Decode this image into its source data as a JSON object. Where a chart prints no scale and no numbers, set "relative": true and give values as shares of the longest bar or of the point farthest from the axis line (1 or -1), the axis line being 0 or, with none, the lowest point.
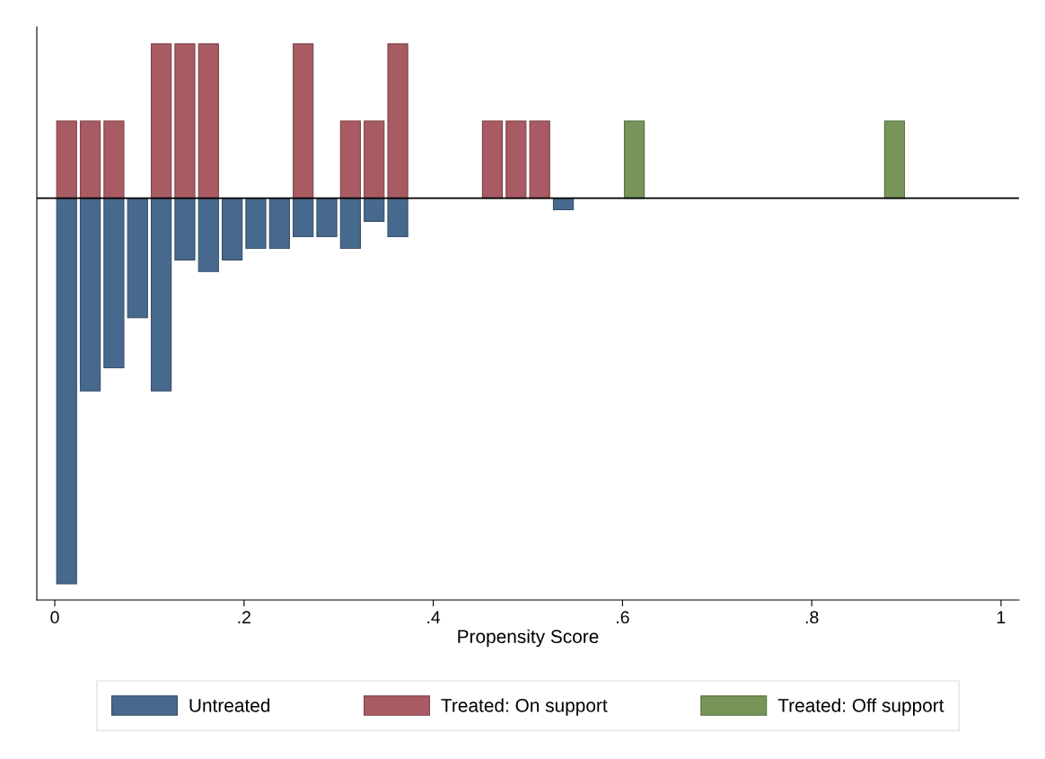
{
  "chart_data": {
    "type": "bar",
    "relative": true,
    "xlabel": "Propensity Score",
    "xlim": [
      -0.019,
      1.019
    ],
    "xticks": [
      0,
      {
        "value": 0.2,
        "label": ".2"
      },
      {
        "value": 0.4,
        "label": ".4"
      },
      {
        "value": 0.6,
        "label": ".6"
      },
      {
        "value": 0.8,
        "label": ".8"
      },
      1
    ],
    "tick_labels": "x",
    "grid": false,
    "legend": "bottom",
    "series": [
      {
        "name": "Untreated",
        "color": "#48698e",
        "x": [
          0.0125,
          0.0375,
          0.0625,
          0.0875,
          0.1125,
          0.1375,
          0.1625,
          0.1875,
          0.2125,
          0.2375,
          0.2625,
          0.2875,
          0.3125,
          0.3375,
          0.3625,
          0.5375
        ],
        "values": [
          -1,
          -0.5,
          -0.44,
          -0.31,
          -0.5,
          -0.16,
          -0.19,
          -0.16,
          -0.13,
          -0.13,
          -0.1,
          -0.1,
          -0.13,
          -0.06,
          -0.1,
          -0.03
        ]
      },
      {
        "name": "Treated: On support",
        "color": "#a85b62",
        "x": [
          0.0125,
          0.0375,
          0.0625,
          0.1125,
          0.1375,
          0.1625,
          0.2625,
          0.3125,
          0.3375,
          0.3625,
          0.4625,
          0.4875,
          0.5125
        ],
        "values": [
          0.2,
          0.2,
          0.2,
          0.4,
          0.4,
          0.4,
          0.4,
          0.2,
          0.2,
          0.4,
          0.2,
          0.2,
          0.2
        ]
      },
      {
        "name": "Treated: Off support",
        "color": "#779559",
        "x": [
          0.6125,
          0.8875
        ],
        "values": [
          0.2,
          0.2
        ]
      }
    ]
  }
}
